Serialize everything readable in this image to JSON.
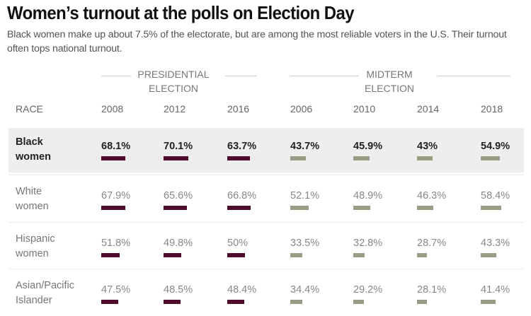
{
  "header": {
    "title": "Women’s turnout at the polls on Election Day",
    "subtitle": "Black women make up about 7.5% of the electorate, but are among the most reliable voters in the U.S. Their turnout often tops national turnout."
  },
  "colors": {
    "presidential_bar": "#4e0b2c",
    "midterm_bar": "#9b9c86",
    "highlight_row": "#eeeeef"
  },
  "groups": {
    "presidential": "PRESIDENTIAL ELECTION",
    "presidential_line1": "PRESIDENTIAL",
    "presidential_line2": "ELECTION",
    "midterm_line1": "MIDTERM",
    "midterm_line2": "ELECTION"
  },
  "chart_data": {
    "type": "table",
    "title": "Women’s turnout at the polls on Election Day",
    "subtitle": "Black women make up about 7.5% of the electorate, but are among the most reliable voters in the U.S. Their turnout often tops national turnout.",
    "row_header": "RACE",
    "column_groups": [
      {
        "name": "PRESIDENTIAL ELECTION",
        "years": [
          "2008",
          "2012",
          "2016"
        ]
      },
      {
        "name": "MIDTERM ELECTION",
        "years": [
          "2006",
          "2010",
          "2014",
          "2018"
        ]
      }
    ],
    "columns": [
      "2008",
      "2012",
      "2016",
      "2006",
      "2010",
      "2014",
      "2018"
    ],
    "unit": "%",
    "rows": [
      {
        "race_line1": "Black",
        "race_line2": "women",
        "highlight": true,
        "labels": [
          "68.1%",
          "70.1%",
          "63.7%",
          "43.7%",
          "45.9%",
          "43%",
          "54.9%"
        ],
        "values": [
          68.1,
          70.1,
          63.7,
          43.7,
          45.9,
          43,
          54.9
        ]
      },
      {
        "race_line1": "White",
        "race_line2": "women",
        "highlight": false,
        "labels": [
          "67.9%",
          "65.6%",
          "66.8%",
          "52.1%",
          "48.9%",
          "46.3%",
          "58.4%"
        ],
        "values": [
          67.9,
          65.6,
          66.8,
          52.1,
          48.9,
          46.3,
          58.4
        ]
      },
      {
        "race_line1": "Hispanic",
        "race_line2": "women",
        "highlight": false,
        "labels": [
          "51.8%",
          "49.8%",
          "50%",
          "33.5%",
          "32.8%",
          "28.7%",
          "43.3%"
        ],
        "values": [
          51.8,
          49.8,
          50,
          33.5,
          32.8,
          28.7,
          43.3
        ]
      },
      {
        "race_line1": "Asian/Pacific",
        "race_line2": "Islander",
        "highlight": false,
        "labels": [
          "47.5%",
          "48.5%",
          "48.4%",
          "34.4%",
          "29.2%",
          "28.1%",
          "41.4%"
        ],
        "values": [
          47.5,
          48.5,
          48.4,
          34.4,
          29.2,
          28.1,
          41.4
        ]
      }
    ]
  }
}
